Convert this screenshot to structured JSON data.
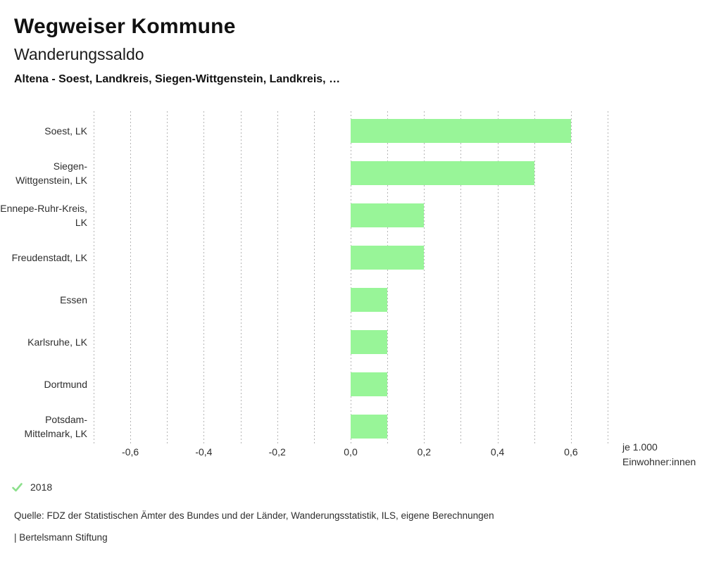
{
  "header": {
    "title": "Wegweiser Kommune",
    "subtitle": "Wanderungssaldo",
    "scope": "Altena - Soest, Landkreis, Siegen-Wittgenstein, Landkreis, …"
  },
  "chart_data": {
    "type": "bar",
    "orientation": "horizontal",
    "title": "Wanderungssaldo",
    "categories": [
      "Soest, LK",
      "Siegen-Wittgenstein, LK",
      "Ennepe-Ruhr-Kreis, LK",
      "Freudenstadt, LK",
      "Essen",
      "Karlsruhe, LK",
      "Dortmund",
      "Potsdam-Mittelmark, LK"
    ],
    "series": [
      {
        "name": "2018",
        "values": [
          0.6,
          0.5,
          0.2,
          0.2,
          0.1,
          0.1,
          0.1,
          0.1
        ]
      }
    ],
    "xlim": [
      -0.7,
      0.7
    ],
    "grid_step": 0.1,
    "grid": true,
    "ticks": [
      {
        "value": -0.6,
        "label": "-0,6"
      },
      {
        "value": -0.4,
        "label": "-0,4"
      },
      {
        "value": -0.2,
        "label": "-0,2"
      },
      {
        "value": 0.0,
        "label": "0,0"
      },
      {
        "value": 0.2,
        "label": "0,2"
      },
      {
        "value": 0.4,
        "label": "0,4"
      },
      {
        "value": 0.6,
        "label": "0,6"
      }
    ],
    "unit_label_lines": [
      "je 1.000",
      "Einwohner:innen"
    ],
    "bar_color": "#98f598",
    "legend_position": "bottom-left"
  },
  "legend": {
    "check_icon": "check-icon",
    "check_color": "#8ce08c",
    "year": "2018"
  },
  "source": "Quelle: FDZ der Statistischen Ämter des Bundes und der Länder, Wanderungsstatistik, ILS, eigene Berechnungen",
  "footer": "| Bertelsmann Stiftung"
}
